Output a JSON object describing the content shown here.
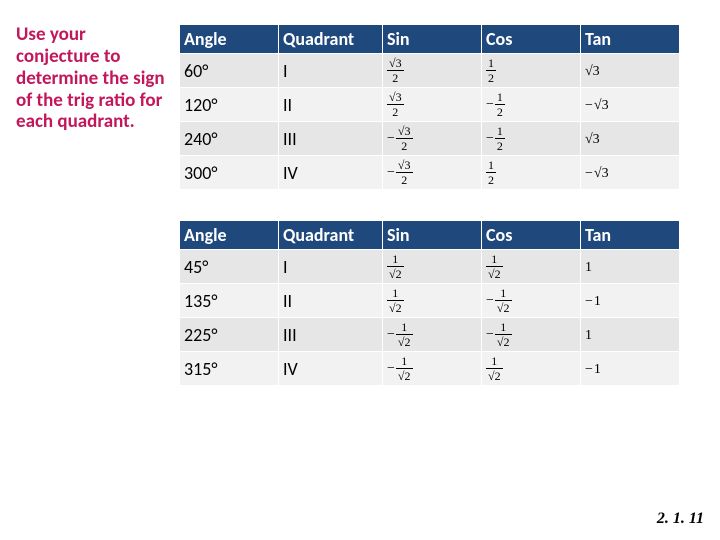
{
  "instruction_text": "Use your conjecture to determine the sign of the trig ratio for each quadrant.",
  "page_number": "2. 1. 11",
  "table_headers": [
    "Angle",
    "Quadrant",
    "Sin",
    "Cos",
    "Tan"
  ],
  "table1": {
    "rows": [
      {
        "angle": "60°",
        "quadrant": "I",
        "sin": {
          "neg": false,
          "num": "√3",
          "den": "2"
        },
        "cos": {
          "neg": false,
          "num": "1",
          "den": "2"
        },
        "tan": {
          "neg": false,
          "plain": "√3"
        }
      },
      {
        "angle": "120°",
        "quadrant": "II",
        "sin": {
          "neg": false,
          "num": "√3",
          "den": "2"
        },
        "cos": {
          "neg": true,
          "num": "1",
          "den": "2"
        },
        "tan": {
          "neg": true,
          "plain": "√3"
        }
      },
      {
        "angle": "240°",
        "quadrant": "III",
        "sin": {
          "neg": true,
          "num": "√3",
          "den": "2"
        },
        "cos": {
          "neg": true,
          "num": "1",
          "den": "2"
        },
        "tan": {
          "neg": false,
          "plain": "√3"
        }
      },
      {
        "angle": "300°",
        "quadrant": "IV",
        "sin": {
          "neg": true,
          "num": "√3",
          "den": "2"
        },
        "cos": {
          "neg": false,
          "num": "1",
          "den": "2"
        },
        "tan": {
          "neg": true,
          "plain": "√3"
        }
      }
    ]
  },
  "table2": {
    "rows": [
      {
        "angle": "45°",
        "quadrant": "I",
        "sin": {
          "neg": false,
          "num": "1",
          "den": "√2"
        },
        "cos": {
          "neg": false,
          "num": "1",
          "den": "√2"
        },
        "tan": {
          "neg": false,
          "plain": "1"
        }
      },
      {
        "angle": "135°",
        "quadrant": "II",
        "sin": {
          "neg": false,
          "num": "1",
          "den": "√2"
        },
        "cos": {
          "neg": true,
          "num": "1",
          "den": "√2"
        },
        "tan": {
          "neg": true,
          "plain": "1"
        }
      },
      {
        "angle": "225°",
        "quadrant": "III",
        "sin": {
          "neg": true,
          "num": "1",
          "den": "√2"
        },
        "cos": {
          "neg": true,
          "num": "1",
          "den": "√2"
        },
        "tan": {
          "neg": false,
          "plain": "1"
        }
      },
      {
        "angle": "315°",
        "quadrant": "IV",
        "sin": {
          "neg": true,
          "num": "1",
          "den": "√2"
        },
        "cos": {
          "neg": false,
          "num": "1",
          "den": "√2"
        },
        "tan": {
          "neg": true,
          "plain": "1"
        }
      }
    ]
  },
  "colors": {
    "header_bg": "#1f497d",
    "header_text": "#ffffff",
    "row_bg_a": "#e6e6e6",
    "row_bg_b": "#f2f2f2",
    "instruction_color": "#c2185b"
  }
}
